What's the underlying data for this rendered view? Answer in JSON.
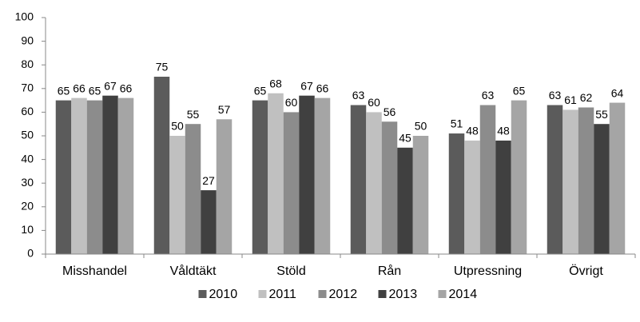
{
  "chart_data": {
    "type": "bar",
    "categories": [
      "Misshandel",
      "Våldtäkt",
      "Stöld",
      "Rån",
      "Utpressning",
      "Övrigt"
    ],
    "series": [
      {
        "name": "2010",
        "color": "#5b5b5b",
        "values": [
          65,
          75,
          65,
          63,
          51,
          63
        ]
      },
      {
        "name": "2011",
        "color": "#c0c0c0",
        "values": [
          66,
          50,
          68,
          60,
          48,
          61
        ]
      },
      {
        "name": "2012",
        "color": "#8c8c8c",
        "values": [
          65,
          55,
          60,
          56,
          63,
          62
        ]
      },
      {
        "name": "2013",
        "color": "#404040",
        "values": [
          67,
          27,
          67,
          45,
          48,
          55
        ]
      },
      {
        "name": "2014",
        "color": "#a5a5a5",
        "values": [
          66,
          57,
          66,
          50,
          65,
          64
        ]
      }
    ],
    "ylim": [
      0,
      100
    ],
    "yticks": [
      0,
      10,
      20,
      30,
      40,
      50,
      60,
      70,
      80,
      90,
      100
    ],
    "grid": false,
    "legend": "bottom"
  }
}
